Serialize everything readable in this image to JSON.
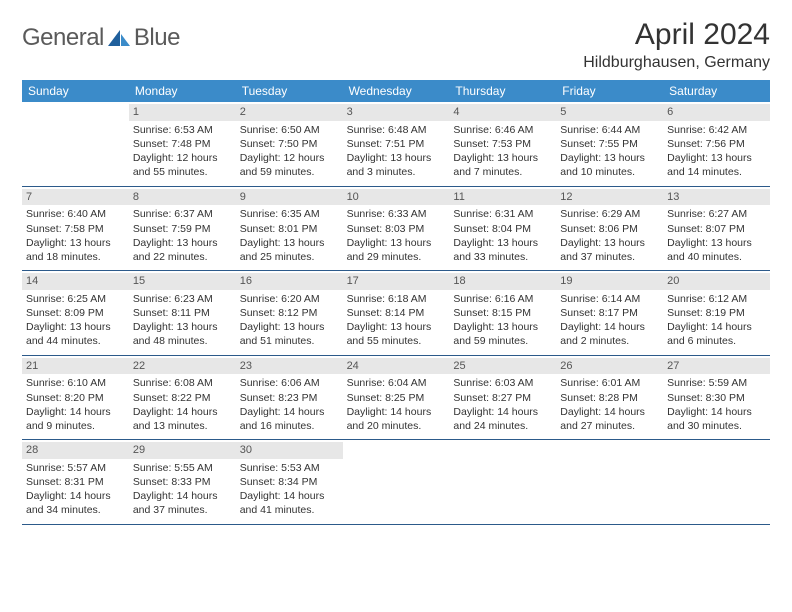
{
  "logo": {
    "word1": "General",
    "word2": "Blue"
  },
  "title": "April 2024",
  "location": "Hildburghausen, Germany",
  "colors": {
    "header_bg": "#3b8bc9",
    "border": "#2c5a8a",
    "daynum_bg": "#e7e7e7",
    "logo_text": "#5a5a5a",
    "logo_icon1": "#1f5f9c",
    "logo_icon2": "#3b8bc9"
  },
  "weekdays": [
    "Sunday",
    "Monday",
    "Tuesday",
    "Wednesday",
    "Thursday",
    "Friday",
    "Saturday"
  ],
  "weeks": [
    [
      null,
      {
        "n": "1",
        "sr": "6:53 AM",
        "ss": "7:48 PM",
        "dl": "12 hours and 55 minutes."
      },
      {
        "n": "2",
        "sr": "6:50 AM",
        "ss": "7:50 PM",
        "dl": "12 hours and 59 minutes."
      },
      {
        "n": "3",
        "sr": "6:48 AM",
        "ss": "7:51 PM",
        "dl": "13 hours and 3 minutes."
      },
      {
        "n": "4",
        "sr": "6:46 AM",
        "ss": "7:53 PM",
        "dl": "13 hours and 7 minutes."
      },
      {
        "n": "5",
        "sr": "6:44 AM",
        "ss": "7:55 PM",
        "dl": "13 hours and 10 minutes."
      },
      {
        "n": "6",
        "sr": "6:42 AM",
        "ss": "7:56 PM",
        "dl": "13 hours and 14 minutes."
      }
    ],
    [
      {
        "n": "7",
        "sr": "6:40 AM",
        "ss": "7:58 PM",
        "dl": "13 hours and 18 minutes."
      },
      {
        "n": "8",
        "sr": "6:37 AM",
        "ss": "7:59 PM",
        "dl": "13 hours and 22 minutes."
      },
      {
        "n": "9",
        "sr": "6:35 AM",
        "ss": "8:01 PM",
        "dl": "13 hours and 25 minutes."
      },
      {
        "n": "10",
        "sr": "6:33 AM",
        "ss": "8:03 PM",
        "dl": "13 hours and 29 minutes."
      },
      {
        "n": "11",
        "sr": "6:31 AM",
        "ss": "8:04 PM",
        "dl": "13 hours and 33 minutes."
      },
      {
        "n": "12",
        "sr": "6:29 AM",
        "ss": "8:06 PM",
        "dl": "13 hours and 37 minutes."
      },
      {
        "n": "13",
        "sr": "6:27 AM",
        "ss": "8:07 PM",
        "dl": "13 hours and 40 minutes."
      }
    ],
    [
      {
        "n": "14",
        "sr": "6:25 AM",
        "ss": "8:09 PM",
        "dl": "13 hours and 44 minutes."
      },
      {
        "n": "15",
        "sr": "6:23 AM",
        "ss": "8:11 PM",
        "dl": "13 hours and 48 minutes."
      },
      {
        "n": "16",
        "sr": "6:20 AM",
        "ss": "8:12 PM",
        "dl": "13 hours and 51 minutes."
      },
      {
        "n": "17",
        "sr": "6:18 AM",
        "ss": "8:14 PM",
        "dl": "13 hours and 55 minutes."
      },
      {
        "n": "18",
        "sr": "6:16 AM",
        "ss": "8:15 PM",
        "dl": "13 hours and 59 minutes."
      },
      {
        "n": "19",
        "sr": "6:14 AM",
        "ss": "8:17 PM",
        "dl": "14 hours and 2 minutes."
      },
      {
        "n": "20",
        "sr": "6:12 AM",
        "ss": "8:19 PM",
        "dl": "14 hours and 6 minutes."
      }
    ],
    [
      {
        "n": "21",
        "sr": "6:10 AM",
        "ss": "8:20 PM",
        "dl": "14 hours and 9 minutes."
      },
      {
        "n": "22",
        "sr": "6:08 AM",
        "ss": "8:22 PM",
        "dl": "14 hours and 13 minutes."
      },
      {
        "n": "23",
        "sr": "6:06 AM",
        "ss": "8:23 PM",
        "dl": "14 hours and 16 minutes."
      },
      {
        "n": "24",
        "sr": "6:04 AM",
        "ss": "8:25 PM",
        "dl": "14 hours and 20 minutes."
      },
      {
        "n": "25",
        "sr": "6:03 AM",
        "ss": "8:27 PM",
        "dl": "14 hours and 24 minutes."
      },
      {
        "n": "26",
        "sr": "6:01 AM",
        "ss": "8:28 PM",
        "dl": "14 hours and 27 minutes."
      },
      {
        "n": "27",
        "sr": "5:59 AM",
        "ss": "8:30 PM",
        "dl": "14 hours and 30 minutes."
      }
    ],
    [
      {
        "n": "28",
        "sr": "5:57 AM",
        "ss": "8:31 PM",
        "dl": "14 hours and 34 minutes."
      },
      {
        "n": "29",
        "sr": "5:55 AM",
        "ss": "8:33 PM",
        "dl": "14 hours and 37 minutes."
      },
      {
        "n": "30",
        "sr": "5:53 AM",
        "ss": "8:34 PM",
        "dl": "14 hours and 41 minutes."
      },
      null,
      null,
      null,
      null
    ]
  ],
  "labels": {
    "sunrise": "Sunrise:",
    "sunset": "Sunset:",
    "daylight": "Daylight:"
  }
}
